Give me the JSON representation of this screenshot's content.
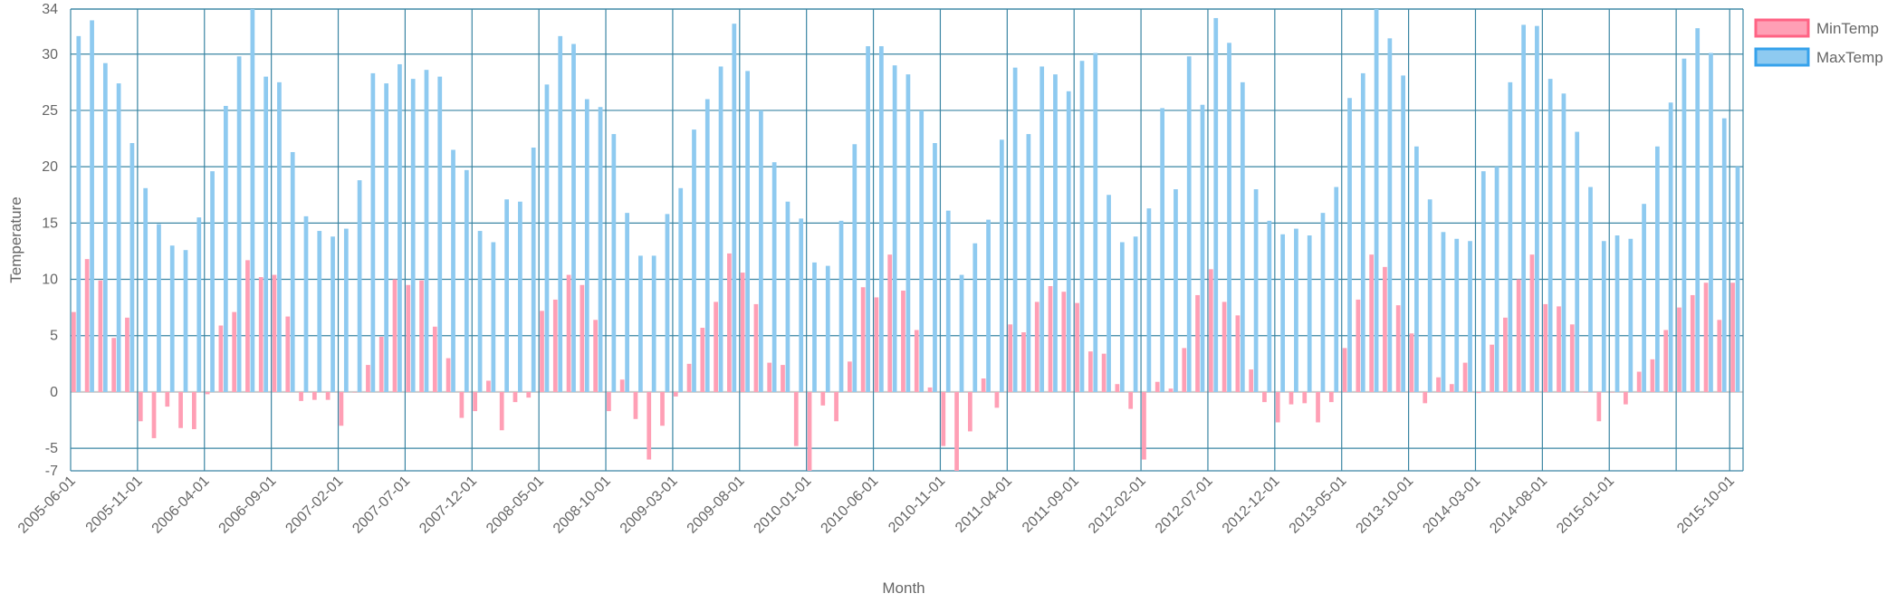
{
  "chart_data": {
    "type": "bar",
    "xlabel": "Month",
    "ylabel": "Temperature",
    "ylim": [
      -7,
      34
    ],
    "yticks": [
      -7,
      -5,
      0,
      5,
      10,
      15,
      20,
      25,
      30,
      34
    ],
    "xtick_labels": [
      "2005-06-01",
      "2005-11-01",
      "2006-04-01",
      "2006-09-01",
      "2007-02-01",
      "2007-07-01",
      "2007-12-01",
      "2008-05-01",
      "2008-10-01",
      "2009-03-01",
      "2009-08-01",
      "2010-01-01",
      "2010-06-01",
      "2010-11-01",
      "2011-04-01",
      "2011-09-01",
      "2012-02-01",
      "2012-07-01",
      "2012-12-01",
      "2013-05-01",
      "2013-10-01",
      "2014-03-01",
      "2014-08-01",
      "2015-01-01",
      "2015-10-01"
    ],
    "grid": true,
    "legend": "top-right",
    "colors": {
      "min_fill": "#ff9fb5",
      "min_border": "#ff6384",
      "max_fill": "#8ecaf0",
      "max_border": "#36a2eb",
      "grid": "#3a85a3",
      "zero_line": "#cccccc"
    },
    "series": [
      {
        "name": "MinTemp",
        "values": [
          7.1,
          11.8,
          9.9,
          4.8,
          6.6,
          -2.6,
          -4.1,
          -1.3,
          -3.2,
          -3.3,
          -0.2,
          5.9,
          7.1,
          11.7,
          10.2,
          10.4,
          6.7,
          -0.8,
          -0.7,
          -0.7,
          -3.0,
          0.0,
          2.4,
          4.9,
          10.0,
          9.5,
          9.9,
          5.8,
          3.0,
          -2.3,
          -1.7,
          1.0,
          -3.4,
          -0.9,
          -0.5,
          7.2,
          8.2,
          10.4,
          9.5,
          6.4,
          -1.7,
          1.1,
          -2.4,
          -6.0,
          -3.0,
          -0.4,
          2.5,
          5.7,
          8.0,
          12.3,
          10.6,
          7.8,
          2.6,
          2.4,
          -4.8,
          -7.0,
          -1.2,
          -2.6,
          2.7,
          9.3,
          8.4,
          12.2,
          9.0,
          5.5,
          0.4,
          -4.8,
          -7.0,
          -3.5,
          1.2,
          -1.4,
          6.0,
          5.3,
          8.0,
          9.4,
          8.9,
          7.9,
          3.6,
          3.4,
          0.7,
          -1.5,
          -6.0,
          0.9,
          0.3,
          3.9,
          8.6,
          10.9,
          8.0,
          6.8,
          2.0,
          -0.9,
          -2.7,
          -1.1,
          -1.0,
          -2.7,
          -0.9,
          3.9,
          8.2,
          12.2,
          11.1,
          7.7,
          5.2,
          -1.0,
          1.3,
          0.7,
          2.6,
          -0.1,
          4.2,
          6.6,
          10.0,
          12.2,
          7.8,
          7.6,
          6.0,
          0.0,
          -2.6,
          0.0,
          -1.1,
          1.8,
          2.9,
          5.5,
          7.5,
          8.6,
          9.7,
          6.4,
          9.7
        ]
      },
      {
        "name": "MaxTemp",
        "values": [
          31.6,
          33.0,
          29.2,
          27.4,
          22.1,
          18.1,
          14.9,
          13.0,
          12.6,
          15.5,
          19.6,
          25.4,
          29.8,
          34.0,
          28.0,
          27.5,
          21.3,
          15.6,
          14.3,
          13.8,
          14.5,
          18.8,
          28.3,
          27.4,
          29.1,
          27.8,
          28.6,
          28.0,
          21.5,
          19.7,
          14.3,
          13.3,
          17.1,
          16.9,
          21.7,
          27.3,
          31.6,
          30.9,
          26.0,
          25.3,
          22.9,
          15.9,
          12.1,
          12.1,
          15.8,
          18.1,
          23.3,
          26.0,
          28.9,
          32.7,
          28.5,
          25.0,
          20.4,
          16.9,
          15.4,
          11.5,
          11.2,
          15.2,
          22.0,
          30.7,
          30.7,
          29.0,
          28.2,
          25.0,
          22.1,
          16.1,
          10.4,
          13.2,
          15.3,
          22.4,
          28.8,
          22.9,
          28.9,
          28.2,
          26.7,
          29.4,
          30.1,
          17.5,
          13.3,
          13.8,
          16.3,
          25.2,
          18.0,
          29.8,
          25.5,
          33.2,
          31.0,
          27.5,
          18.0,
          15.2,
          14.0,
          14.5,
          13.9,
          15.9,
          18.2,
          26.1,
          28.3,
          34.0,
          31.4,
          28.1,
          21.8,
          17.1,
          14.2,
          13.6,
          13.4,
          19.6,
          20.0,
          27.5,
          32.6,
          32.5,
          27.8,
          26.5,
          23.1,
          18.2,
          13.4,
          13.9,
          13.6,
          16.7,
          21.8,
          25.7,
          29.6,
          32.3,
          30.1,
          24.3,
          20.0
        ]
      }
    ]
  }
}
